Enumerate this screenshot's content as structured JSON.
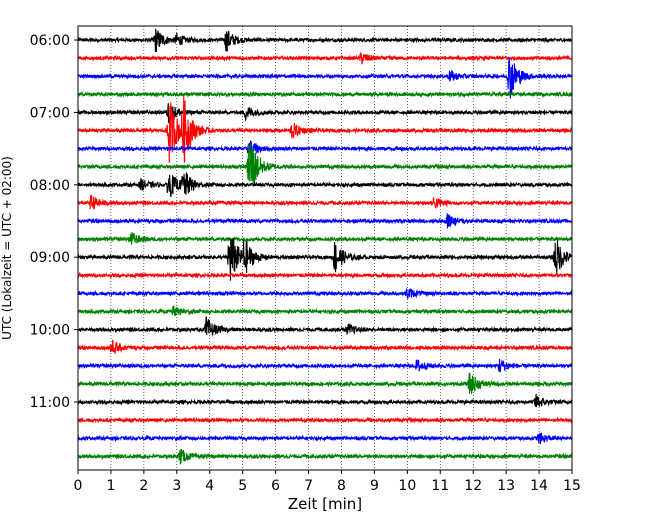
{
  "chart_data": {
    "type": "line",
    "title": "",
    "xlabel": "Zeit  [min]",
    "ylabel": "UTC (Lokalzeit = UTC + 02:00)",
    "xlim": [
      0,
      15
    ],
    "x_ticks": [
      "0",
      "1",
      "2",
      "3",
      "4",
      "5",
      "6",
      "7",
      "8",
      "9",
      "10",
      "11",
      "12",
      "13",
      "14",
      "15"
    ],
    "y_ticks": [
      "06:00",
      "07:00",
      "08:00",
      "09:00",
      "10:00",
      "11:00"
    ],
    "grid": "vertical dotted",
    "minutes_per_trace": 15,
    "trace_colors": [
      "#000000",
      "#ff0000",
      "#0000ff",
      "#008000"
    ],
    "series": [
      {
        "start": "06:00",
        "color": "#000000",
        "events": [
          {
            "t": 2.35,
            "amp": 1.4
          },
          {
            "t": 4.5,
            "amp": 1.3
          },
          {
            "t": 3.0,
            "amp": 0.6
          }
        ]
      },
      {
        "start": "06:15",
        "color": "#ff0000",
        "events": [
          {
            "t": 8.6,
            "amp": 0.6
          }
        ]
      },
      {
        "start": "06:30",
        "color": "#0000ff",
        "events": [
          {
            "t": 11.3,
            "amp": 0.6
          },
          {
            "t": 13.1,
            "amp": 2.8
          }
        ]
      },
      {
        "start": "06:45",
        "color": "#008000",
        "events": []
      },
      {
        "start": "07:00",
        "color": "#000000",
        "events": [
          {
            "t": 2.75,
            "amp": 1.2
          },
          {
            "t": 5.1,
            "amp": 0.8
          }
        ]
      },
      {
        "start": "07:15",
        "color": "#ff0000",
        "events": [
          {
            "t": 2.75,
            "amp": 4.2
          },
          {
            "t": 3.2,
            "amp": 3.5
          },
          {
            "t": 6.5,
            "amp": 0.9
          }
        ]
      },
      {
        "start": "07:30",
        "color": "#0000ff",
        "events": [
          {
            "t": 5.2,
            "amp": 1.0
          }
        ]
      },
      {
        "start": "07:45",
        "color": "#008000",
        "events": [
          {
            "t": 5.2,
            "amp": 4.0
          }
        ]
      },
      {
        "start": "08:00",
        "color": "#000000",
        "events": [
          {
            "t": 2.75,
            "amp": 1.6
          },
          {
            "t": 3.2,
            "amp": 1.6
          },
          {
            "t": 1.9,
            "amp": 0.6
          }
        ]
      },
      {
        "start": "08:15",
        "color": "#ff0000",
        "events": [
          {
            "t": 0.4,
            "amp": 0.8
          },
          {
            "t": 10.8,
            "amp": 0.7
          }
        ]
      },
      {
        "start": "08:30",
        "color": "#0000ff",
        "events": [
          {
            "t": 11.2,
            "amp": 0.8
          }
        ]
      },
      {
        "start": "08:45",
        "color": "#008000",
        "events": [
          {
            "t": 1.6,
            "amp": 0.8
          }
        ]
      },
      {
        "start": "09:00",
        "color": "#000000",
        "events": [
          {
            "t": 4.6,
            "amp": 3.5
          },
          {
            "t": 5.05,
            "amp": 1.8
          },
          {
            "t": 7.8,
            "amp": 1.9
          },
          {
            "t": 14.5,
            "amp": 2.3
          }
        ]
      },
      {
        "start": "09:15",
        "color": "#ff0000",
        "events": []
      },
      {
        "start": "09:30",
        "color": "#0000ff",
        "events": [
          {
            "t": 10.0,
            "amp": 0.6
          }
        ]
      },
      {
        "start": "09:45",
        "color": "#008000",
        "events": [
          {
            "t": 2.9,
            "amp": 0.5
          }
        ]
      },
      {
        "start": "10:00",
        "color": "#000000",
        "events": [
          {
            "t": 3.9,
            "amp": 1.3
          },
          {
            "t": 8.2,
            "amp": 0.6
          }
        ]
      },
      {
        "start": "10:15",
        "color": "#ff0000",
        "events": [
          {
            "t": 1.0,
            "amp": 0.9
          }
        ]
      },
      {
        "start": "10:30",
        "color": "#0000ff",
        "events": [
          {
            "t": 10.3,
            "amp": 0.7
          },
          {
            "t": 12.8,
            "amp": 0.8
          }
        ]
      },
      {
        "start": "10:45",
        "color": "#008000",
        "events": [
          {
            "t": 11.9,
            "amp": 1.3
          }
        ]
      },
      {
        "start": "11:00",
        "color": "#000000",
        "events": [
          {
            "t": 13.9,
            "amp": 0.8
          }
        ]
      },
      {
        "start": "11:15",
        "color": "#ff0000",
        "events": []
      },
      {
        "start": "11:30",
        "color": "#0000ff",
        "events": [
          {
            "t": 14.0,
            "amp": 0.6
          }
        ]
      },
      {
        "start": "11:45",
        "color": "#008000",
        "events": [
          {
            "t": 3.1,
            "amp": 0.8
          }
        ]
      }
    ]
  }
}
